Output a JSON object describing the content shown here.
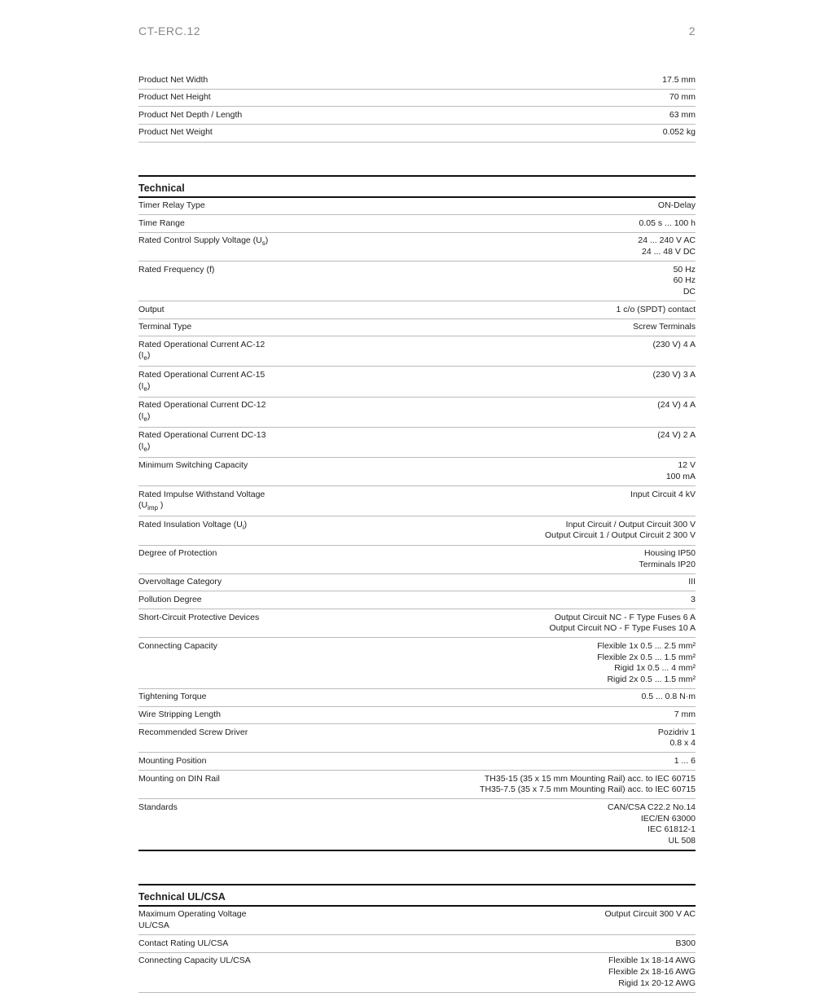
{
  "header": {
    "product": "CT-ERC.12",
    "page": "2"
  },
  "dimensions": {
    "rows": [
      {
        "label": "Product Net Width",
        "value": "17.5 mm"
      },
      {
        "label": "Product Net Height",
        "value": "70 mm"
      },
      {
        "label": "Product Net Depth / Length",
        "value": "63 mm"
      },
      {
        "label": "Product Net Weight",
        "value": "0.052 kg"
      }
    ]
  },
  "technical": {
    "title": "Technical",
    "rows": [
      {
        "label": "Timer Relay Type",
        "value": "ON-Delay"
      },
      {
        "label": "Time Range",
        "value": "0.05 s ... 100 h"
      },
      {
        "label": "Rated Control Supply Voltage (U",
        "label_sub": "s",
        "label_after": ")",
        "value": "24 ... 240 V AC\n24 ... 48 V DC"
      },
      {
        "label": "Rated Frequency (f)",
        "value": "50 Hz\n60 Hz\nDC"
      },
      {
        "label": "Output",
        "value": "1 c/o (SPDT) contact"
      },
      {
        "label": "Terminal Type",
        "value": "Screw Terminals"
      },
      {
        "label": "Rated Operational Current AC-12 (I",
        "label_sub": "e",
        "label_after": ")",
        "value": "(230 V) 4 A"
      },
      {
        "label": "Rated Operational Current AC-15 (I",
        "label_sub": "e",
        "label_after": ")",
        "value": "(230 V) 3 A"
      },
      {
        "label": "Rated Operational Current DC-12 (I",
        "label_sub": "e",
        "label_after": ")",
        "value": "(24 V) 4 A"
      },
      {
        "label": "Rated Operational Current DC-13 (I",
        "label_sub": "e",
        "label_after": ")",
        "value": "(24 V) 2 A"
      },
      {
        "label": "Minimum Switching Capacity",
        "value": "12 V\n100 mA"
      },
      {
        "label": "Rated Impulse Withstand Voltage (U",
        "label_sub": "imp",
        "label_after": " )",
        "value": "Input Circuit 4 kV"
      },
      {
        "label": "Rated Insulation Voltage (U",
        "label_sub": "i",
        "label_after": ")",
        "value": "Input Circuit / Output Circuit 300 V\nOutput Circuit 1 / Output Circuit 2 300 V"
      },
      {
        "label": "Degree of Protection",
        "value": "Housing IP50\nTerminals IP20"
      },
      {
        "label": "Overvoltage Category",
        "value": "III"
      },
      {
        "label": "Pollution Degree",
        "value": "3"
      },
      {
        "label": "Short-Circuit Protective Devices",
        "value": "Output Circuit NC - F Type Fuses 6 A\nOutput Circuit NO - F Type Fuses 10 A"
      },
      {
        "label": "Connecting Capacity",
        "value": "Flexible 1x 0.5 ... 2.5 mm²\nFlexible 2x 0.5 ... 1.5 mm²\nRigid 1x 0.5 ... 4 mm²\nRigid 2x 0.5 ... 1.5 mm²"
      },
      {
        "label": "Tightening Torque",
        "value": "0.5 ... 0.8 N·m"
      },
      {
        "label": "Wire Stripping Length",
        "value": "7 mm"
      },
      {
        "label": "Recommended Screw Driver",
        "value": "Pozidriv 1\n0.8 x 4"
      },
      {
        "label": "Mounting Position",
        "value": "1 ... 6"
      },
      {
        "label": "Mounting on DIN Rail",
        "value": "TH35-15 (35 x 15 mm Mounting Rail) acc. to IEC 60715\nTH35-7.5 (35 x 7.5 mm Mounting Rail) acc. to IEC 60715"
      },
      {
        "label": "Standards",
        "value": "CAN/CSA C22.2 No.14\nIEC/EN 63000\nIEC 61812-1\nUL 508"
      }
    ]
  },
  "technical_ulcsa": {
    "title": "Technical UL/CSA",
    "rows": [
      {
        "label": "Maximum Operating Voltage UL/CSA",
        "value": "Output Circuit 300 V AC"
      },
      {
        "label": "Contact Rating UL/CSA",
        "value": "B300"
      },
      {
        "label": "Connecting Capacity UL/CSA",
        "value": "Flexible 1x 18-14 AWG\nFlexible 2x 18-16 AWG\nRigid 1x 20-12 AWG"
      }
    ]
  }
}
